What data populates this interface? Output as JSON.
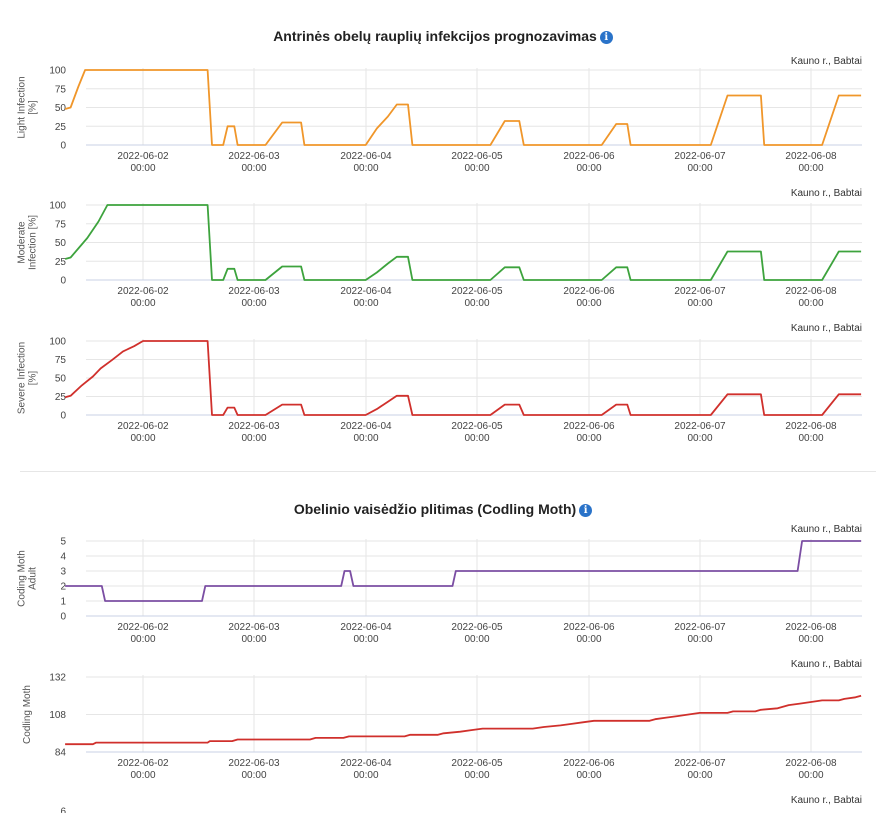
{
  "panels": [
    {
      "title": "Antrinės obelų rauplių infekcijos prognozavimas",
      "info_icon": "info-circle-icon"
    },
    {
      "title": "Obelinio vaisėdžio plitimas (Codling Moth)",
      "info_icon": "info-circle-icon"
    }
  ],
  "location": "Kauno r., Babtai",
  "x_ticks": [
    {
      "date": "2022-06-02",
      "time": "00:00"
    },
    {
      "date": "2022-06-03",
      "time": "00:00"
    },
    {
      "date": "2022-06-04",
      "time": "00:00"
    },
    {
      "date": "2022-06-05",
      "time": "00:00"
    },
    {
      "date": "2022-06-06",
      "time": "00:00"
    },
    {
      "date": "2022-06-07",
      "time": "00:00"
    },
    {
      "date": "2022-06-08",
      "time": "00:00"
    }
  ],
  "colors": {
    "light": "#f0962a",
    "moderate": "#3da33d",
    "severe": "#d0302c",
    "moth_adult": "#7b4ea3",
    "moth": "#d0302c",
    "grid": "#e6e6e6",
    "baseline": "#c8d2e6"
  },
  "chart_data": [
    {
      "type": "line",
      "ylabel": [
        "Light Infection",
        "[%]"
      ],
      "yticks": [
        0,
        25,
        50,
        75,
        100
      ],
      "ylim": [
        0,
        100
      ],
      "series": [
        {
          "points": [
            [
              1.3,
              48
            ],
            [
              1.35,
              50
            ],
            [
              1.42,
              78
            ],
            [
              1.48,
              100
            ],
            [
              2.58,
              100
            ],
            [
              2.62,
              0
            ],
            [
              2.72,
              0
            ],
            [
              2.76,
              25
            ],
            [
              2.82,
              25
            ],
            [
              2.85,
              0
            ],
            [
              3.1,
              0
            ],
            [
              3.25,
              30
            ],
            [
              3.3,
              30
            ],
            [
              3.42,
              30
            ],
            [
              3.45,
              0
            ],
            [
              4.0,
              0
            ],
            [
              4.1,
              22
            ],
            [
              4.2,
              38
            ],
            [
              4.28,
              54
            ],
            [
              4.38,
              54
            ],
            [
              4.42,
              0
            ],
            [
              5.12,
              0
            ],
            [
              5.25,
              32
            ],
            [
              5.38,
              32
            ],
            [
              5.42,
              0
            ],
            [
              6.12,
              0
            ],
            [
              6.25,
              28
            ],
            [
              6.35,
              28
            ],
            [
              6.38,
              0
            ],
            [
              7.1,
              0
            ],
            [
              7.25,
              66
            ],
            [
              7.35,
              66
            ],
            [
              7.55,
              66
            ],
            [
              7.58,
              0
            ],
            [
              8.1,
              0
            ],
            [
              8.25,
              66
            ],
            [
              8.45,
              66
            ]
          ]
        }
      ]
    },
    {
      "type": "line",
      "ylabel": [
        "Moderate",
        "Infection [%]"
      ],
      "yticks": [
        0,
        25,
        50,
        75,
        100
      ],
      "ylim": [
        0,
        100
      ],
      "series": [
        {
          "points": [
            [
              1.3,
              28
            ],
            [
              1.35,
              30
            ],
            [
              1.5,
              56
            ],
            [
              1.6,
              78
            ],
            [
              1.68,
              100
            ],
            [
              2.58,
              100
            ],
            [
              2.62,
              0
            ],
            [
              2.72,
              0
            ],
            [
              2.76,
              15
            ],
            [
              2.82,
              15
            ],
            [
              2.85,
              0
            ],
            [
              3.1,
              0
            ],
            [
              3.25,
              18
            ],
            [
              3.3,
              18
            ],
            [
              3.42,
              18
            ],
            [
              3.45,
              0
            ],
            [
              4.0,
              0
            ],
            [
              4.1,
              10
            ],
            [
              4.2,
              22
            ],
            [
              4.28,
              31
            ],
            [
              4.38,
              31
            ],
            [
              4.42,
              0
            ],
            [
              5.12,
              0
            ],
            [
              5.25,
              17
            ],
            [
              5.38,
              17
            ],
            [
              5.42,
              0
            ],
            [
              6.12,
              0
            ],
            [
              6.25,
              17
            ],
            [
              6.35,
              17
            ],
            [
              6.38,
              0
            ],
            [
              7.1,
              0
            ],
            [
              7.25,
              38
            ],
            [
              7.35,
              38
            ],
            [
              7.55,
              38
            ],
            [
              7.58,
              0
            ],
            [
              8.1,
              0
            ],
            [
              8.25,
              38
            ],
            [
              8.45,
              38
            ]
          ]
        }
      ]
    },
    {
      "type": "line",
      "ylabel": [
        "Severe Infection",
        "[%]"
      ],
      "yticks": [
        0,
        25,
        50,
        75,
        100
      ],
      "ylim": [
        0,
        100
      ],
      "series": [
        {
          "points": [
            [
              1.3,
              24
            ],
            [
              1.35,
              26
            ],
            [
              1.45,
              40
            ],
            [
              1.55,
              52
            ],
            [
              1.62,
              63
            ],
            [
              1.72,
              74
            ],
            [
              1.82,
              86
            ],
            [
              1.92,
              93
            ],
            [
              2.0,
              100
            ],
            [
              2.58,
              100
            ],
            [
              2.62,
              0
            ],
            [
              2.72,
              0
            ],
            [
              2.76,
              10
            ],
            [
              2.82,
              10
            ],
            [
              2.85,
              0
            ],
            [
              3.1,
              0
            ],
            [
              3.25,
              14
            ],
            [
              3.3,
              14
            ],
            [
              3.42,
              14
            ],
            [
              3.45,
              0
            ],
            [
              4.0,
              0
            ],
            [
              4.1,
              8
            ],
            [
              4.2,
              18
            ],
            [
              4.28,
              26
            ],
            [
              4.38,
              26
            ],
            [
              4.42,
              0
            ],
            [
              5.12,
              0
            ],
            [
              5.25,
              14
            ],
            [
              5.38,
              14
            ],
            [
              5.42,
              0
            ],
            [
              6.12,
              0
            ],
            [
              6.25,
              14
            ],
            [
              6.35,
              14
            ],
            [
              6.38,
              0
            ],
            [
              7.1,
              0
            ],
            [
              7.25,
              28
            ],
            [
              7.35,
              28
            ],
            [
              7.55,
              28
            ],
            [
              7.58,
              0
            ],
            [
              8.1,
              0
            ],
            [
              8.25,
              28
            ],
            [
              8.45,
              28
            ]
          ]
        }
      ]
    },
    {
      "type": "line",
      "ylabel": [
        "Coding Moth",
        "Adult"
      ],
      "yticks": [
        0,
        1,
        2,
        3,
        4,
        5
      ],
      "ylim": [
        0,
        5
      ],
      "series": [
        {
          "points": [
            [
              1.3,
              2
            ],
            [
              1.63,
              2
            ],
            [
              1.66,
              1
            ],
            [
              2.53,
              1
            ],
            [
              2.56,
              2
            ],
            [
              3.78,
              2
            ],
            [
              3.81,
              3
            ],
            [
              3.86,
              3
            ],
            [
              3.89,
              2
            ],
            [
              4.78,
              2
            ],
            [
              4.81,
              3
            ],
            [
              7.88,
              3
            ],
            [
              7.92,
              5
            ],
            [
              8.45,
              5
            ]
          ]
        }
      ]
    },
    {
      "type": "line",
      "ylabel": [
        "Codling Moth"
      ],
      "yticks": [
        84,
        108,
        132
      ],
      "ylim": [
        84,
        132
      ],
      "series": [
        {
          "points": [
            [
              1.3,
              89
            ],
            [
              1.55,
              89
            ],
            [
              1.58,
              90
            ],
            [
              2.58,
              90
            ],
            [
              2.6,
              91
            ],
            [
              2.8,
              91
            ],
            [
              2.85,
              92
            ],
            [
              3.5,
              92
            ],
            [
              3.55,
              93
            ],
            [
              3.8,
              93
            ],
            [
              3.85,
              94
            ],
            [
              4.1,
              94
            ],
            [
              4.35,
              94
            ],
            [
              4.4,
              95
            ],
            [
              4.65,
              95
            ],
            [
              4.7,
              96
            ],
            [
              4.85,
              97
            ],
            [
              4.95,
              98
            ],
            [
              5.05,
              99
            ],
            [
              5.2,
              99
            ],
            [
              5.35,
              99
            ],
            [
              5.5,
              99
            ],
            [
              5.6,
              100
            ],
            [
              5.75,
              101
            ],
            [
              5.85,
              102
            ],
            [
              5.95,
              103
            ],
            [
              6.05,
              104
            ],
            [
              6.3,
              104
            ],
            [
              6.45,
              104
            ],
            [
              6.55,
              104
            ],
            [
              6.6,
              105
            ],
            [
              6.7,
              106
            ],
            [
              6.8,
              107
            ],
            [
              6.9,
              108
            ],
            [
              7.0,
              109
            ],
            [
              7.25,
              109
            ],
            [
              7.3,
              110
            ],
            [
              7.5,
              110
            ],
            [
              7.55,
              111
            ],
            [
              7.7,
              112
            ],
            [
              7.8,
              114
            ],
            [
              7.9,
              115
            ],
            [
              8.0,
              116
            ],
            [
              8.1,
              117
            ],
            [
              8.25,
              117
            ],
            [
              8.3,
              118
            ],
            [
              8.4,
              119
            ],
            [
              8.45,
              120
            ]
          ]
        }
      ]
    },
    {
      "type": "line",
      "yticks": [
        6
      ],
      "ylim": [
        0,
        6
      ],
      "series": []
    }
  ]
}
